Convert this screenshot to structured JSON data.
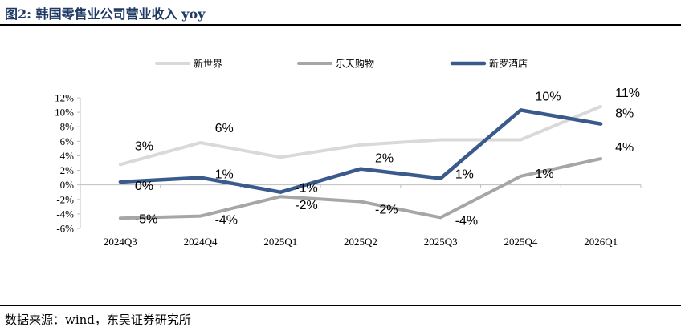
{
  "header": {
    "title": "图2:  韩国零售业公司营业收入 yoy"
  },
  "footer": {
    "source": "数据来源：wind，东吴证券研究所"
  },
  "chart_data": {
    "type": "line",
    "title": "",
    "xlabel": "",
    "ylabel": "",
    "categories": [
      "2024Q3",
      "2024Q4",
      "2025Q1",
      "2025Q2",
      "2025Q3",
      "2025Q4",
      "2026Q1"
    ],
    "ylim": [
      -6,
      12
    ],
    "yticks": [
      "12%",
      "10%",
      "8%",
      "6%",
      "4%",
      "2%",
      "0%",
      "-2%",
      "-4%",
      "-6%"
    ],
    "grid": false,
    "legend_position": "top",
    "series": [
      {
        "name": "新世界",
        "color": "#d9d9d9",
        "values": [
          2.8,
          5.8,
          3.8,
          5.5,
          6.2,
          6.2,
          10.8
        ],
        "labels": [
          "3%",
          "6%",
          "",
          "",
          "",
          "",
          "11%"
        ]
      },
      {
        "name": "乐天购物",
        "color": "#a6a6a6",
        "values": [
          -4.6,
          -4.3,
          -1.6,
          -2.3,
          -4.5,
          1.2,
          3.6
        ],
        "labels": [
          "-5%",
          "-4%",
          "-2%",
          "-2%",
          "-4%",
          "1%",
          "4%"
        ]
      },
      {
        "name": "新罗酒店",
        "color": "#3a5a8c",
        "values": [
          0.4,
          1.0,
          -1.0,
          2.2,
          0.9,
          10.3,
          8.4
        ],
        "labels": [
          "0%",
          "1%",
          "-1%",
          "2%",
          "1%",
          "10%",
          "8%"
        ]
      }
    ]
  }
}
